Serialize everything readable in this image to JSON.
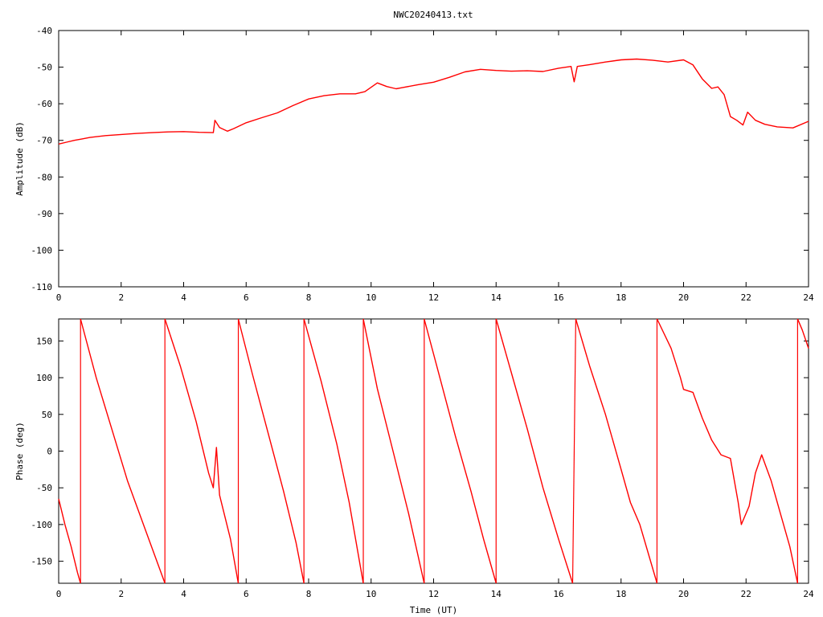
{
  "title": "NWC20240413.txt",
  "colors": {
    "series": "#ff0000",
    "axes": "#000000",
    "background": "#ffffff"
  },
  "chart_data": [
    {
      "type": "line",
      "title": "NWC20240413.txt",
      "xlabel": "",
      "ylabel": "Amplitude (dB)",
      "xlim": [
        0,
        24
      ],
      "ylim": [
        -110,
        -40
      ],
      "xticks": [
        "0",
        "2",
        "4",
        "6",
        "8",
        "10",
        "12",
        "14",
        "16",
        "18",
        "20",
        "22",
        "24"
      ],
      "yticks": [
        "-40",
        "-50",
        "-60",
        "-70",
        "-80",
        "-90",
        "-100",
        "-110"
      ],
      "grid": false,
      "series": [
        {
          "color": "#ff0000",
          "points": [
            [
              0,
              -71
            ],
            [
              0.25,
              -70.5
            ],
            [
              0.5,
              -70
            ],
            [
              0.75,
              -69.6
            ],
            [
              1,
              -69.2
            ],
            [
              1.5,
              -68.7
            ],
            [
              2,
              -68.4
            ],
            [
              2.5,
              -68.1
            ],
            [
              3,
              -67.9
            ],
            [
              3.5,
              -67.7
            ],
            [
              4,
              -67.6
            ],
            [
              4.5,
              -67.8
            ],
            [
              4.95,
              -67.9
            ],
            [
              5.0,
              -64.5
            ],
            [
              5.15,
              -66.5
            ],
            [
              5.4,
              -67.5
            ],
            [
              5.6,
              -66.8
            ],
            [
              6,
              -65.2
            ],
            [
              6.5,
              -63.8
            ],
            [
              7,
              -62.5
            ],
            [
              7.5,
              -60.5
            ],
            [
              8,
              -58.7
            ],
            [
              8.5,
              -57.8
            ],
            [
              9,
              -57.3
            ],
            [
              9.5,
              -57.3
            ],
            [
              9.8,
              -56.7
            ],
            [
              10.2,
              -54.3
            ],
            [
              10.5,
              -55.3
            ],
            [
              10.8,
              -55.9
            ],
            [
              11,
              -55.6
            ],
            [
              11.5,
              -54.8
            ],
            [
              12,
              -54.1
            ],
            [
              12.5,
              -52.8
            ],
            [
              13,
              -51.3
            ],
            [
              13.5,
              -50.6
            ],
            [
              14,
              -50.9
            ],
            [
              14.5,
              -51.1
            ],
            [
              15,
              -51.0
            ],
            [
              15.5,
              -51.2
            ],
            [
              16,
              -50.3
            ],
            [
              16.4,
              -49.8
            ],
            [
              16.5,
              -54
            ],
            [
              16.6,
              -49.8
            ],
            [
              17,
              -49.3
            ],
            [
              17.5,
              -48.6
            ],
            [
              18,
              -48.0
            ],
            [
              18.5,
              -47.8
            ],
            [
              19,
              -48.1
            ],
            [
              19.5,
              -48.6
            ],
            [
              20,
              -48.0
            ],
            [
              20.3,
              -49.4
            ],
            [
              20.6,
              -53.2
            ],
            [
              20.9,
              -55.8
            ],
            [
              21.1,
              -55.4
            ],
            [
              21.3,
              -57.5
            ],
            [
              21.5,
              -63.5
            ],
            [
              21.7,
              -64.5
            ],
            [
              21.9,
              -65.8
            ],
            [
              22.05,
              -62.3
            ],
            [
              22.3,
              -64.5
            ],
            [
              22.6,
              -65.6
            ],
            [
              23,
              -66.3
            ],
            [
              23.5,
              -66.6
            ],
            [
              24,
              -64.8
            ]
          ]
        }
      ]
    },
    {
      "type": "line",
      "title": "",
      "xlabel": "Time (UT)",
      "ylabel": "Phase (deg)",
      "xlim": [
        0,
        24
      ],
      "ylim": [
        -180,
        180
      ],
      "xticks": [
        "0",
        "2",
        "4",
        "6",
        "8",
        "10",
        "12",
        "14",
        "16",
        "18",
        "20",
        "22",
        "24"
      ],
      "yticks": [
        "150",
        "100",
        "50",
        "0",
        "-50",
        "-100",
        "-150"
      ],
      "grid": false,
      "phase_wrapping": true,
      "series": [
        {
          "color": "#ff0000",
          "segments": [
            [
              [
                0,
                -65
              ],
              [
                0.2,
                -100
              ],
              [
                0.4,
                -130
              ],
              [
                0.6,
                -165
              ],
              [
                0.7,
                -180
              ]
            ],
            [
              [
                0.7,
                180
              ],
              [
                1.2,
                100
              ],
              [
                1.7,
                30
              ],
              [
                2.2,
                -40
              ],
              [
                2.8,
                -110
              ],
              [
                3.4,
                -180
              ]
            ],
            [
              [
                3.4,
                180
              ],
              [
                3.9,
                115
              ],
              [
                4.4,
                40
              ],
              [
                4.8,
                -30
              ],
              [
                4.95,
                -50
              ],
              [
                5.05,
                5
              ],
              [
                5.15,
                -60
              ],
              [
                5.5,
                -120
              ],
              [
                5.75,
                -180
              ]
            ],
            [
              [
                5.75,
                180
              ],
              [
                6.2,
                105
              ],
              [
                6.7,
                25
              ],
              [
                7.2,
                -55
              ],
              [
                7.6,
                -125
              ],
              [
                7.85,
                -180
              ]
            ],
            [
              [
                7.85,
                180
              ],
              [
                8.4,
                95
              ],
              [
                8.9,
                10
              ],
              [
                9.3,
                -70
              ],
              [
                9.75,
                -180
              ]
            ],
            [
              [
                9.75,
                180
              ],
              [
                10.2,
                85
              ],
              [
                10.7,
                0
              ],
              [
                11.2,
                -85
              ],
              [
                11.7,
                -180
              ]
            ],
            [
              [
                11.7,
                180
              ],
              [
                12.2,
                100
              ],
              [
                12.7,
                20
              ],
              [
                13.2,
                -55
              ],
              [
                13.6,
                -120
              ],
              [
                14.0,
                -180
              ]
            ],
            [
              [
                14.0,
                180
              ],
              [
                14.5,
                105
              ],
              [
                15.0,
                30
              ],
              [
                15.5,
                -50
              ],
              [
                16.0,
                -120
              ],
              [
                16.45,
                -180
              ]
            ],
            [
              [
                16.55,
                180
              ],
              [
                17.0,
                115
              ],
              [
                17.5,
                50
              ],
              [
                18.0,
                -25
              ],
              [
                18.3,
                -70
              ],
              [
                18.6,
                -100
              ],
              [
                19.15,
                -180
              ]
            ],
            [
              [
                19.15,
                180
              ],
              [
                19.6,
                140
              ],
              [
                19.9,
                100
              ],
              [
                20.0,
                84
              ],
              [
                20.3,
                80
              ],
              [
                20.6,
                45
              ],
              [
                20.9,
                15
              ],
              [
                21.2,
                -5
              ],
              [
                21.5,
                -10
              ],
              [
                21.75,
                -70
              ],
              [
                21.85,
                -100
              ],
              [
                22.1,
                -75
              ],
              [
                22.3,
                -30
              ],
              [
                22.5,
                -5
              ],
              [
                22.8,
                -40
              ],
              [
                23.1,
                -85
              ],
              [
                23.4,
                -130
              ],
              [
                23.65,
                -180
              ]
            ],
            [
              [
                23.65,
                180
              ],
              [
                23.8,
                165
              ],
              [
                24,
                140
              ]
            ]
          ]
        }
      ]
    }
  ]
}
